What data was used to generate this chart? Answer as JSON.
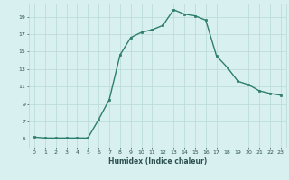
{
  "x": [
    0,
    1,
    2,
    3,
    4,
    5,
    6,
    7,
    8,
    9,
    10,
    11,
    12,
    13,
    14,
    15,
    16,
    17,
    18,
    19,
    20,
    21,
    22,
    23
  ],
  "y": [
    5.2,
    5.1,
    5.1,
    5.1,
    5.1,
    5.1,
    7.2,
    9.5,
    14.6,
    16.6,
    17.2,
    17.5,
    18.0,
    19.8,
    19.3,
    19.1,
    18.6,
    14.5,
    13.2,
    11.6,
    11.2,
    10.5,
    10.2,
    10.0
  ],
  "line_color": "#2e7d6e",
  "marker": "s",
  "markersize": 1.8,
  "linewidth": 1.0,
  "xlabel": "Humidex (Indice chaleur)",
  "xlim": [
    -0.5,
    23.5
  ],
  "ylim": [
    4.0,
    20.5
  ],
  "yticks": [
    5,
    7,
    9,
    11,
    13,
    15,
    17,
    19
  ],
  "xticks": [
    0,
    1,
    2,
    3,
    4,
    5,
    6,
    7,
    8,
    9,
    10,
    11,
    12,
    13,
    14,
    15,
    16,
    17,
    18,
    19,
    20,
    21,
    22,
    23
  ],
  "bg_color": "#d8f0f0",
  "grid_color": "#b8d8d8",
  "font_color": "#2e5050",
  "xlabel_fontsize": 5.5,
  "tick_fontsize": 4.5
}
